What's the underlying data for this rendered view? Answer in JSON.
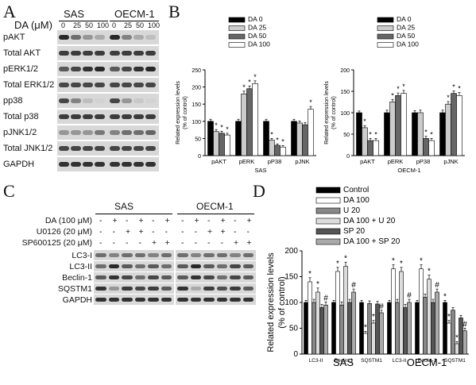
{
  "panels": {
    "A": {
      "letter": "A",
      "group_labels": [
        "SAS",
        "OECM-1"
      ],
      "dose_label": "DA (μM)",
      "doses": [
        "0",
        "25",
        "50",
        "100"
      ],
      "rows": [
        "pAKT",
        "Total AKT",
        "pERK1/2",
        "Total ERK1/2",
        "pp38",
        "Total p38",
        "pJNK1/2",
        "Total JNK1/2",
        "GAPDH"
      ],
      "band_intensity": [
        [
          0.95,
          0.6,
          0.4,
          0.3,
          0.95,
          0.5,
          0.3,
          0.2
        ],
        [
          0.85,
          0.85,
          0.85,
          0.85,
          0.85,
          0.85,
          0.85,
          0.85
        ],
        [
          0.7,
          0.8,
          0.9,
          0.95,
          0.7,
          0.8,
          0.9,
          0.95
        ],
        [
          0.8,
          0.8,
          0.8,
          0.8,
          0.8,
          0.8,
          0.8,
          0.8
        ],
        [
          0.8,
          0.5,
          0.2,
          0.1,
          0.8,
          0.4,
          0.15,
          0.1
        ],
        [
          0.85,
          0.85,
          0.85,
          0.85,
          0.85,
          0.85,
          0.85,
          0.85
        ],
        [
          0.4,
          0.4,
          0.4,
          0.55,
          0.5,
          0.6,
          0.6,
          0.65
        ],
        [
          0.8,
          0.8,
          0.8,
          0.8,
          0.8,
          0.8,
          0.8,
          0.8
        ],
        [
          0.9,
          0.9,
          0.9,
          0.9,
          0.9,
          0.9,
          0.9,
          0.9
        ]
      ]
    },
    "B": {
      "letter": "B"
    },
    "C": {
      "letter": "C",
      "group_labels": [
        "SAS",
        "OECM-1"
      ],
      "treatment_rows": [
        {
          "label": "DA (100 μM)",
          "signs": [
            "-",
            "+",
            "-",
            "+",
            "-",
            "+",
            "-",
            "+",
            "-",
            "+",
            "-",
            "+"
          ]
        },
        {
          "label": "U0126 (20 μM)",
          "signs": [
            "-",
            "-",
            "+",
            "+",
            "-",
            "-",
            "-",
            "-",
            "+",
            "+",
            "-",
            "-"
          ]
        },
        {
          "label": "SP600125 (20 μM)",
          "signs": [
            "-",
            "-",
            "-",
            "-",
            "+",
            "+",
            "-",
            "-",
            "-",
            "-",
            "+",
            "+"
          ]
        }
      ],
      "blot_rows": [
        "LC3-I",
        "LC3-II",
        "Beclin-1",
        "SQSTM1",
        "GAPDH"
      ],
      "band_intensity": [
        [
          0.6,
          0.5,
          0.6,
          0.6,
          0.5,
          0.6,
          0.6,
          0.5,
          0.6,
          0.6,
          0.5,
          0.6
        ],
        [
          0.6,
          0.95,
          0.7,
          0.6,
          0.7,
          0.6,
          0.7,
          0.95,
          0.7,
          0.6,
          0.8,
          0.7
        ],
        [
          0.7,
          0.9,
          0.8,
          0.6,
          0.8,
          0.7,
          0.7,
          0.9,
          0.8,
          0.6,
          0.8,
          0.7
        ],
        [
          0.9,
          0.4,
          0.85,
          0.8,
          0.85,
          0.7,
          0.9,
          0.3,
          0.85,
          0.75,
          0.85,
          0.7
        ],
        [
          0.9,
          0.9,
          0.9,
          0.9,
          0.9,
          0.9,
          0.9,
          0.9,
          0.9,
          0.9,
          0.9,
          0.9
        ]
      ]
    },
    "D": {
      "letter": "D"
    }
  },
  "chart_data": [
    {
      "type": "bar",
      "panel": "B",
      "xlabel": "SAS",
      "ylabel": "Related expression levels (% of control)",
      "categories": [
        "pAKT",
        "pERK",
        "pP38",
        "pJNK"
      ],
      "ylim": [
        0,
        250
      ],
      "yticks": [
        0,
        50,
        100,
        150,
        200,
        250
      ],
      "legend_position": "top-right",
      "series": [
        {
          "name": "DA 0",
          "color": "#000000",
          "values": [
            100,
            100,
            100,
            100
          ],
          "errors": [
            6,
            6,
            6,
            6
          ]
        },
        {
          "name": "DA 25",
          "color": "#cccccc",
          "values": [
            70,
            180,
            45,
            95
          ],
          "errors": [
            6,
            8,
            5,
            6
          ]
        },
        {
          "name": "DA 50",
          "color": "#666666",
          "values": [
            65,
            195,
            30,
            90
          ],
          "errors": [
            6,
            8,
            4,
            6
          ]
        },
        {
          "name": "DA 100",
          "color": "#ffffff",
          "values": [
            60,
            210,
            25,
            135
          ],
          "errors": [
            5,
            8,
            4,
            8
          ]
        }
      ],
      "annotations": [
        {
          "category": "pAKT",
          "series": [
            1,
            2,
            3
          ],
          "text": "*"
        },
        {
          "category": "pERK",
          "series": [
            1,
            2,
            3
          ],
          "text": "*"
        },
        {
          "category": "pP38",
          "series": [
            1,
            2,
            3
          ],
          "text": "*"
        },
        {
          "category": "pJNK",
          "series": [
            3
          ],
          "text": "*"
        }
      ]
    },
    {
      "type": "bar",
      "panel": "B",
      "xlabel": "OECM-1",
      "ylabel": "Related expression levels (% of control)",
      "categories": [
        "pAKT",
        "pERK",
        "pP38",
        "pJNK"
      ],
      "ylim": [
        0,
        200
      ],
      "yticks": [
        0,
        50,
        100,
        150,
        200
      ],
      "legend_position": "top-right",
      "series": [
        {
          "name": "DA 0",
          "color": "#000000",
          "values": [
            100,
            100,
            100,
            100
          ],
          "errors": [
            4,
            6,
            5,
            6
          ]
        },
        {
          "name": "DA 25",
          "color": "#cccccc",
          "values": [
            65,
            125,
            100,
            120
          ],
          "errors": [
            5,
            6,
            6,
            6
          ]
        },
        {
          "name": "DA 50",
          "color": "#666666",
          "values": [
            35,
            140,
            40,
            145
          ],
          "errors": [
            5,
            6,
            5,
            6
          ]
        },
        {
          "name": "DA 100",
          "color": "#ffffff",
          "values": [
            35,
            145,
            35,
            140
          ],
          "errors": [
            5,
            7,
            5,
            7
          ]
        }
      ],
      "annotations": [
        {
          "category": "pAKT",
          "series": [
            1,
            2,
            3
          ],
          "text": "*"
        },
        {
          "category": "pERK",
          "series": [
            1,
            2,
            3
          ],
          "text": "*"
        },
        {
          "category": "pP38",
          "series": [
            2,
            3
          ],
          "text": "*"
        },
        {
          "category": "pJNK",
          "series": [
            1,
            2,
            3
          ],
          "text": "*"
        }
      ]
    },
    {
      "type": "bar",
      "panel": "D",
      "xlabel": "",
      "ylabel": "Related expression levels (% of control)",
      "group_labels": [
        "SAS",
        "OECM-1"
      ],
      "categories": [
        "LC3-II",
        "Beclin-1",
        "SQSTM1",
        "LC3-II",
        "Beclin-1",
        "SQSTM1"
      ],
      "ylim": [
        0,
        200
      ],
      "yticks": [
        0,
        50,
        100,
        150,
        200
      ],
      "legend_position": "top-right",
      "series": [
        {
          "name": "Control",
          "color": "#000000",
          "values": [
            100,
            100,
            100,
            100,
            100,
            100
          ],
          "errors": [
            4,
            4,
            4,
            4,
            4,
            4
          ]
        },
        {
          "name": "DA 100",
          "color": "#ffffff",
          "values": [
            140,
            160,
            40,
            165,
            165,
            60
          ],
          "errors": [
            8,
            8,
            4,
            8,
            8,
            5
          ]
        },
        {
          "name": "U 20",
          "color": "#888888",
          "values": [
            100,
            95,
            98,
            100,
            110,
            85
          ],
          "errors": [
            6,
            6,
            5,
            6,
            6,
            5
          ]
        },
        {
          "name": "DA 100 + U 20",
          "color": "#dddddd",
          "values": [
            120,
            170,
            60,
            160,
            145,
            20
          ],
          "errors": [
            8,
            8,
            5,
            8,
            8,
            4
          ]
        },
        {
          "name": "SP 20",
          "color": "#555555",
          "values": [
            90,
            100,
            97,
            90,
            100,
            70
          ],
          "errors": [
            6,
            6,
            5,
            6,
            6,
            5
          ]
        },
        {
          "name": "DA 100 + SP 20",
          "color": "#aaaaaa",
          "values": [
            95,
            120,
            80,
            100,
            120,
            45
          ],
          "errors": [
            6,
            6,
            5,
            6,
            6,
            5
          ]
        }
      ],
      "annotations": [
        {
          "category": 0,
          "series": [
            1,
            3
          ],
          "text": "*"
        },
        {
          "category": 0,
          "series": [
            5
          ],
          "text": "#"
        },
        {
          "category": 1,
          "series": [
            1,
            3
          ],
          "text": "*"
        },
        {
          "category": 1,
          "series": [
            5
          ],
          "text": "#"
        },
        {
          "category": 2,
          "series": [
            1,
            3
          ],
          "text": "*"
        },
        {
          "category": 2,
          "series": [
            5
          ],
          "text": "#"
        },
        {
          "category": 3,
          "series": [
            1,
            3
          ],
          "text": "*"
        },
        {
          "category": 3,
          "series": [
            5
          ],
          "text": "#"
        },
        {
          "category": 4,
          "series": [
            1,
            3
          ],
          "text": "*"
        },
        {
          "category": 4,
          "series": [
            5
          ],
          "text": "#"
        },
        {
          "category": 5,
          "series": [
            0,
            1,
            3
          ],
          "text": "*"
        },
        {
          "category": 5,
          "series": [
            5
          ],
          "text": "#"
        }
      ]
    }
  ]
}
